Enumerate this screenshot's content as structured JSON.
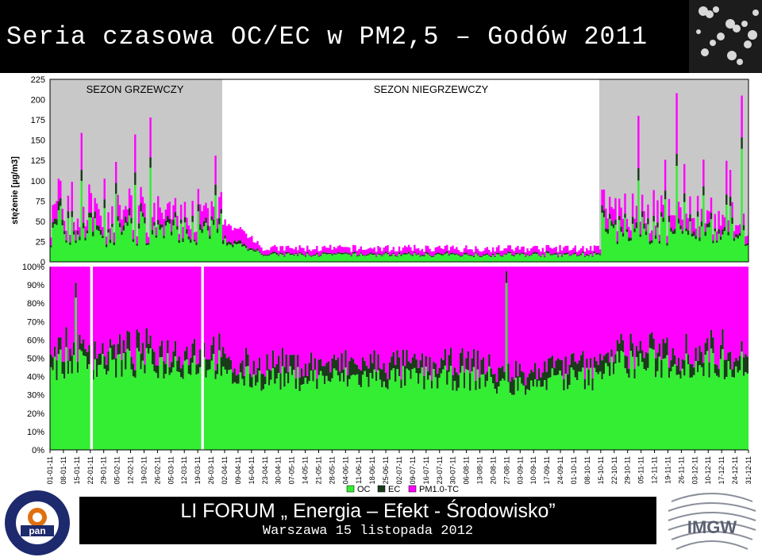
{
  "header": {
    "title": "Seria czasowa OC/EC w PM2,5 – Godów 2011"
  },
  "footer": {
    "title": "LI FORUM „ Energia – Efekt - Środowisko”",
    "subtitle": "Warszawa 15 listopada 2012",
    "logo_left_text": "INSTYTUT PODSTAW INŻYNIERII ŚRODOWISKA",
    "logo_left_mark": "pan",
    "logo_right_text": "IMGW"
  },
  "chart_data": [
    {
      "type": "area",
      "title": "",
      "ylabel": "stężenie [µg/m3]",
      "xlabel": "",
      "ylim": [
        0,
        225
      ],
      "yticks": [
        "0",
        "25",
        "50",
        "75",
        "100",
        "125",
        "150",
        "175",
        "200",
        "225"
      ],
      "season_labels": [
        "SEZON GRZEWCZY",
        "SEZON NIEGRZEWCZY"
      ],
      "season_bands": [
        [
          "2011-01-01",
          "2011-03-31"
        ],
        [
          "2011-10-15",
          "2011-12-31"
        ]
      ],
      "series": [
        {
          "name": "OC",
          "color": "#33ee33",
          "values": []
        },
        {
          "name": "EC",
          "color": "#1a3a1a",
          "values": []
        },
        {
          "name": "PM1.0-TC",
          "color": "#ff00ff",
          "values": []
        }
      ],
      "total_peaks": [
        {
          "x": "2011-01-17",
          "y": 159
        },
        {
          "x": "2011-02-14",
          "y": 157
        },
        {
          "x": "2011-02-22",
          "y": 178
        },
        {
          "x": "2011-03-28",
          "y": 131
        },
        {
          "x": "2011-11-04",
          "y": 180
        },
        {
          "x": "2011-11-24",
          "y": 208
        },
        {
          "x": "2011-12-28",
          "y": 205
        }
      ]
    },
    {
      "type": "area",
      "title": "",
      "ylim": [
        0,
        100
      ],
      "yticks": [
        "0%",
        "10%",
        "20%",
        "30%",
        "40%",
        "50%",
        "60%",
        "70%",
        "80%",
        "90%",
        "100%"
      ],
      "x_start": "2011-01-01",
      "x_end": "2011-12-31",
      "xticks": [
        "01-01-11",
        "08-01-11",
        "15-01-11",
        "22-01-11",
        "29-01-11",
        "05-02-11",
        "12-02-11",
        "19-02-11",
        "26-02-11",
        "05-03-11",
        "12-03-11",
        "19-03-11",
        "26-03-11",
        "02-04-11",
        "09-04-11",
        "16-04-11",
        "23-04-11",
        "30-04-11",
        "07-05-11",
        "14-05-11",
        "21-05-11",
        "28-05-11",
        "04-06-11",
        "11-06-11",
        "18-06-11",
        "25-06-11",
        "02-07-11",
        "09-07-11",
        "16-07-11",
        "23-07-11",
        "30-07-11",
        "06-08-11",
        "13-08-11",
        "20-08-11",
        "27-08-11",
        "03-09-11",
        "10-09-11",
        "17-09-11",
        "24-09-11",
        "01-10-11",
        "08-10-11",
        "15-10-11",
        "22-10-11",
        "29-10-11",
        "05-11-11",
        "12-11-11",
        "19-11-11",
        "26-11-11",
        "03-12-11",
        "10-12-11",
        "17-12-11",
        "24-12-11",
        "31-12-11"
      ],
      "series": [
        {
          "name": "OC",
          "color": "#33ee33",
          "values": []
        },
        {
          "name": "EC",
          "color": "#1a3a1a",
          "values": []
        },
        {
          "name": "PM1.0-TC",
          "color": "#ff00ff",
          "values": []
        }
      ],
      "gaps": [
        "2011-01-22",
        "2011-03-21"
      ],
      "oc_share_peaks": [
        {
          "x": "2011-01-14",
          "y": 87
        },
        {
          "x": "2011-08-27",
          "y": 95
        }
      ]
    }
  ],
  "legend": [
    "OC",
    "EC",
    "PM1.0-TC"
  ]
}
